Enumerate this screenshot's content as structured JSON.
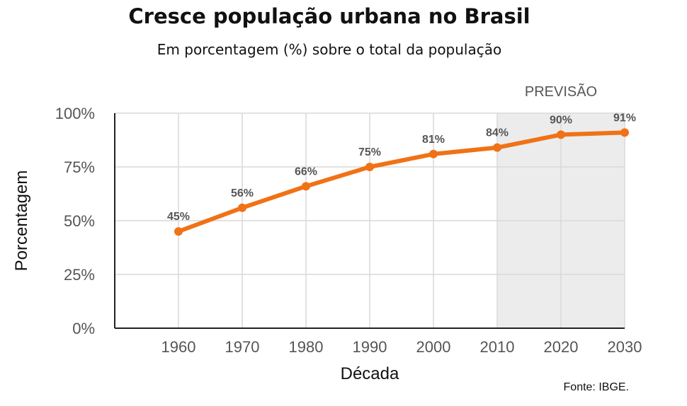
{
  "chart_data": {
    "type": "line",
    "title": "Cresce população urbana no Brasil",
    "subtitle": "Em porcentagem (%) sobre o total da população",
    "xlabel": "Década",
    "ylabel": "Porcentagem",
    "x": [
      1960,
      1970,
      1980,
      1990,
      2000,
      2010,
      2020,
      2030
    ],
    "series": [
      {
        "values": [
          45,
          56,
          66,
          75,
          81,
          84,
          90,
          91
        ]
      }
    ],
    "data_labels": [
      "45%",
      "56%",
      "66%",
      "75%",
      "81%",
      "84%",
      "90%",
      "91%"
    ],
    "ylim": [
      0,
      100
    ],
    "yticks": [
      0,
      25,
      50,
      75,
      100
    ],
    "ytick_labels": [
      "0%",
      "25%",
      "50%",
      "75%",
      "100%"
    ],
    "xlim": [
      1950,
      2030
    ],
    "forecast_region": {
      "label": "PREVISÃO",
      "from": 2010,
      "to": 2030
    },
    "grid": true,
    "source": "Fonte: IBGE.",
    "colors": {
      "line": "#f07216",
      "forecast_bg": "#ececec",
      "grid": "#d9d9d9"
    }
  }
}
